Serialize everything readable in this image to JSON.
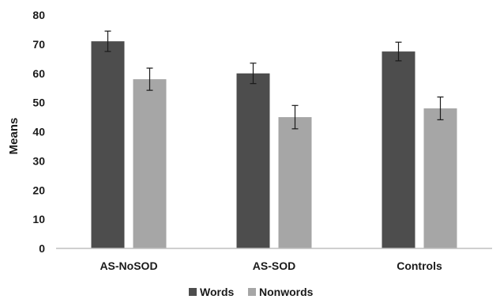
{
  "chart_data": {
    "type": "bar",
    "title": "",
    "xlabel": "",
    "ylabel": "Means",
    "ylim": [
      0,
      80
    ],
    "yticks": [
      "0",
      "10",
      "20",
      "30",
      "40",
      "50",
      "60",
      "70",
      "80"
    ],
    "categories": [
      "AS-NoSOD",
      "AS-SOD",
      "Controls"
    ],
    "series": [
      {
        "name": "Words",
        "values": [
          71,
          60,
          67.5
        ],
        "error": [
          3.5,
          3.5,
          3.2
        ],
        "color": "#4d4d4d"
      },
      {
        "name": "Nonwords",
        "values": [
          58,
          45,
          48
        ],
        "error": [
          3.8,
          4.0,
          3.9
        ],
        "color": "#a6a6a6"
      }
    ],
    "grid": false,
    "legend_position": "bottom"
  }
}
